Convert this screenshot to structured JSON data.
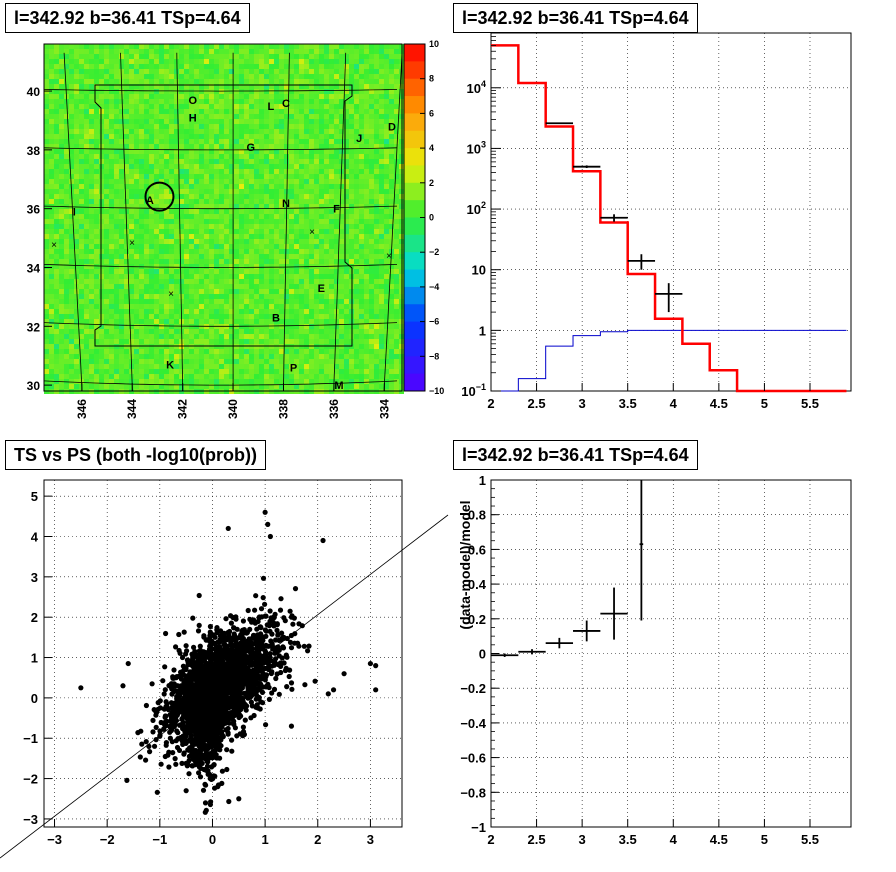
{
  "panels": {
    "skymap": {
      "title": "l=342.92 b=36.41 TSp=4.64",
      "x_ticks": [
        "346",
        "344",
        "342",
        "340",
        "338",
        "336",
        "334"
      ],
      "y_ticks": [
        "30",
        "32",
        "34",
        "36",
        "38",
        "40"
      ],
      "colorbar_ticks": [
        "10",
        "8",
        "6",
        "4",
        "2",
        "0",
        "−2",
        "−4",
        "−6",
        "−8",
        "−10"
      ],
      "labels": [
        "O",
        "L",
        "C",
        "H",
        "J",
        "D",
        "G",
        "A",
        "I",
        "N",
        "F",
        "E",
        "B",
        "K",
        "P",
        "M"
      ],
      "circle_label": "A"
    },
    "spectrum": {
      "title": "l=342.92 b=36.41 TSp=4.64",
      "x_ticks": [
        "2",
        "2.5",
        "3",
        "3.5",
        "4",
        "4.5",
        "5",
        "5.5"
      ],
      "y_ticks": [
        "10",
        "1",
        "10"
      ],
      "y_tick_exponents": [
        "-1",
        "",
        "",
        "2",
        "3",
        "4"
      ],
      "y_tick_full": [
        "10⁻¹",
        "1",
        "10",
        "10²",
        "10³",
        "10⁴"
      ]
    },
    "scatter": {
      "title": "TS vs PS (both -log10(prob))",
      "x_ticks": [
        "−3",
        "−2",
        "−1",
        "0",
        "1",
        "2",
        "3"
      ],
      "y_ticks": [
        "−3",
        "−2",
        "−1",
        "0",
        "1",
        "2",
        "3",
        "4",
        "5"
      ]
    },
    "residual": {
      "title": "l=342.92 b=36.41 TSp=4.64",
      "ylabel": "(data-model)/model",
      "x_ticks": [
        "2",
        "2.5",
        "3",
        "3.5",
        "4",
        "4.5",
        "5",
        "5.5"
      ],
      "y_ticks": [
        "1",
        "0.8",
        "0.6",
        "0.4",
        "0.2",
        "0",
        "−0.2",
        "−0.4",
        "−0.6",
        "−0.8",
        "−1"
      ]
    }
  },
  "chart_data": [
    {
      "type": "heatmap",
      "title": "l=342.92 b=36.41 TSp=4.64",
      "xlim": [
        347.5,
        333.3
      ],
      "ylim": [
        29.8,
        41.6
      ],
      "zlim": [
        -10,
        10
      ],
      "colors": {
        "low": "#5500ff",
        "mid": "#33ee33",
        "high": "#ff0000"
      },
      "source_labels": [
        {
          "name": "O",
          "x": 341.6,
          "y": 39.7
        },
        {
          "name": "L",
          "x": 338.5,
          "y": 39.5
        },
        {
          "name": "C",
          "x": 337.9,
          "y": 39.6
        },
        {
          "name": "H",
          "x": 341.6,
          "y": 39.1
        },
        {
          "name": "J",
          "x": 335.0,
          "y": 38.4
        },
        {
          "name": "D",
          "x": 333.7,
          "y": 38.8
        },
        {
          "name": "G",
          "x": 339.3,
          "y": 38.1
        },
        {
          "name": "A",
          "x": 343.3,
          "y": 36.3
        },
        {
          "name": "I",
          "x": 346.3,
          "y": 35.9
        },
        {
          "name": "N",
          "x": 337.9,
          "y": 36.2
        },
        {
          "name": "F",
          "x": 335.9,
          "y": 36.0
        },
        {
          "name": "E",
          "x": 336.5,
          "y": 33.3
        },
        {
          "name": "B",
          "x": 338.3,
          "y": 32.3
        },
        {
          "name": "K",
          "x": 342.5,
          "y": 30.7
        },
        {
          "name": "P",
          "x": 337.6,
          "y": 30.6
        },
        {
          "name": "M",
          "x": 335.8,
          "y": 30.0
        }
      ],
      "circle": {
        "x": 342.92,
        "y": 36.41,
        "label": "A"
      }
    },
    {
      "type": "line",
      "title": "l=342.92 b=36.41 TSp=4.64",
      "xlim": [
        2,
        5.95
      ],
      "ylim": [
        0.1,
        80000
      ],
      "yscale": "log",
      "grid": true,
      "x": [
        2.0,
        2.3,
        2.6,
        2.9,
        3.2,
        3.5,
        3.8,
        4.1,
        4.4,
        4.7,
        5.0,
        5.3,
        5.6
      ],
      "series": [
        {
          "color": "#ff0000",
          "values": [
            50000,
            12000,
            2300,
            420,
            60,
            8.5,
            1.55,
            0.6,
            0.22,
            0.1,
            0.1,
            0.1,
            0.1
          ]
        },
        {
          "color": "#0000cc",
          "values": [
            0.05,
            0.16,
            0.55,
            0.82,
            0.95,
            1.0,
            1.0,
            1.0,
            1.0,
            1.0,
            1.0,
            1.0,
            1.0
          ]
        }
      ],
      "data_points": [
        {
          "x": 2.75,
          "y": 2600,
          "xerr": 0.15,
          "yerr": 60
        },
        {
          "x": 3.05,
          "y": 500,
          "xerr": 0.15,
          "yerr": 25
        },
        {
          "x": 3.35,
          "y": 72,
          "xerr": 0.15,
          "yerr": 10
        },
        {
          "x": 3.65,
          "y": 14,
          "xerr": 0.15,
          "yerr": 4
        },
        {
          "x": 3.95,
          "y": 4,
          "xerr": 0.15,
          "yerr": 2
        }
      ]
    },
    {
      "type": "scatter",
      "title": "TS vs PS (both -log10(prob))",
      "xlim": [
        -3.2,
        3.6
      ],
      "ylim": [
        -3.2,
        5.4
      ],
      "grid": true,
      "diagonal": true,
      "points_note_count": 2600,
      "outliers": [
        [
          -2.5,
          0.25
        ],
        [
          -1.6,
          0.85
        ],
        [
          -1.7,
          0.3
        ],
        [
          3.0,
          0.85
        ],
        [
          3.1,
          0.8
        ],
        [
          3.1,
          0.2
        ],
        [
          2.5,
          0.6
        ],
        [
          2.3,
          0.2
        ],
        [
          2.1,
          3.9
        ],
        [
          2.2,
          0.1
        ],
        [
          1.0,
          4.6
        ],
        [
          1.05,
          4.3
        ],
        [
          0.3,
          4.2
        ],
        [
          1.1,
          4.0
        ],
        [
          0.5,
          -2.5
        ],
        [
          0.1,
          -2.2
        ],
        [
          -0.8,
          -1.0
        ],
        [
          -1.1,
          -1.2
        ],
        [
          -0.5,
          -2.3
        ],
        [
          1.5,
          -0.7
        ],
        [
          1.5,
          2.0
        ]
      ],
      "cloud": {
        "center": [
          0.2,
          0.35
        ],
        "spread_x": 0.55,
        "spread_y": 0.75,
        "correlation": 0.6
      }
    },
    {
      "type": "line",
      "title": "l=342.92 b=36.41 TSp=4.64",
      "ylabel": "(data-model)/model",
      "xlim": [
        2,
        5.95
      ],
      "ylim": [
        -1,
        1
      ],
      "grid": true,
      "data_points": [
        {
          "x": 2.15,
          "y": -0.01,
          "xerr": 0.15,
          "yerr": 0.01
        },
        {
          "x": 2.45,
          "y": 0.01,
          "xerr": 0.15,
          "yerr": 0.015
        },
        {
          "x": 2.75,
          "y": 0.06,
          "xerr": 0.15,
          "yerr": 0.03
        },
        {
          "x": 3.05,
          "y": 0.13,
          "xerr": 0.15,
          "yerr": 0.06
        },
        {
          "x": 3.35,
          "y": 0.23,
          "xerr": 0.15,
          "yerr": 0.15
        },
        {
          "x": 3.65,
          "y": 0.63,
          "xerr": 0.02,
          "yerr": 0.44
        }
      ]
    }
  ]
}
